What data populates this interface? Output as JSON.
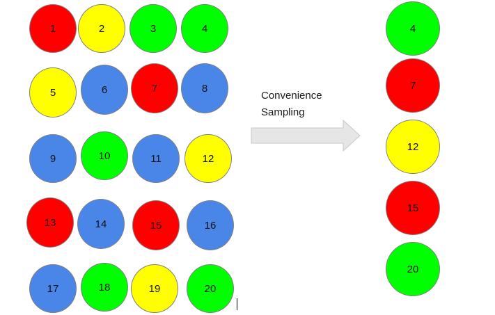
{
  "colors": {
    "red": "#ff0000",
    "yellow": "#ffff00",
    "green": "#00ff00",
    "blue": "#4a86e8",
    "arrow_fill": "#e6e6e6",
    "arrow_stroke": "#c8c8c8"
  },
  "population": [
    {
      "label": "1",
      "color": "red"
    },
    {
      "label": "2",
      "color": "yellow"
    },
    {
      "label": "3",
      "color": "green"
    },
    {
      "label": "4",
      "color": "green"
    },
    {
      "label": "5",
      "color": "yellow"
    },
    {
      "label": "6",
      "color": "blue"
    },
    {
      "label": "7",
      "color": "red"
    },
    {
      "label": "8",
      "color": "blue"
    },
    {
      "label": "9",
      "color": "blue"
    },
    {
      "label": "10",
      "color": "green"
    },
    {
      "label": "11",
      "color": "blue"
    },
    {
      "label": "12",
      "color": "yellow"
    },
    {
      "label": "13",
      "color": "red"
    },
    {
      "label": "14",
      "color": "blue"
    },
    {
      "label": "15",
      "color": "red"
    },
    {
      "label": "16",
      "color": "blue"
    },
    {
      "label": "17",
      "color": "blue"
    },
    {
      "label": "18",
      "color": "green"
    },
    {
      "label": "19",
      "color": "yellow"
    },
    {
      "label": "20",
      "color": "green"
    }
  ],
  "sample": [
    {
      "label": "4",
      "color": "green"
    },
    {
      "label": "7",
      "color": "red"
    },
    {
      "label": "12",
      "color": "yellow"
    },
    {
      "label": "15",
      "color": "red"
    },
    {
      "label": "20",
      "color": "green"
    }
  ],
  "arrow_label": {
    "line1": "Convenience",
    "line2": "Sampling"
  }
}
